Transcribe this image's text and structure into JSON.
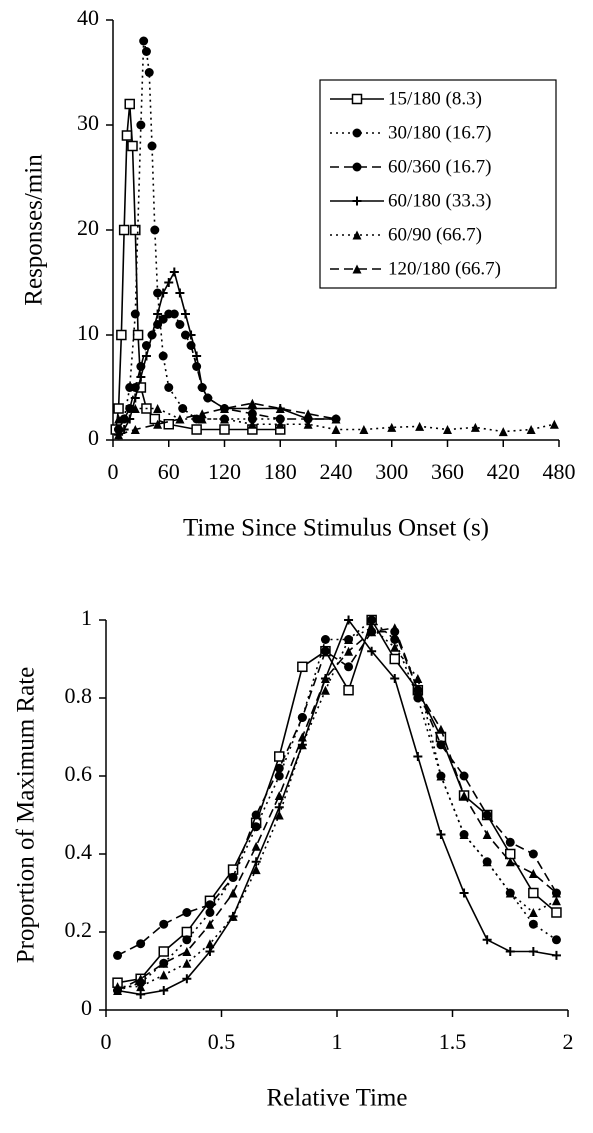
{
  "chart_data": [
    {
      "type": "line",
      "xlabel": "Time Since Stimulus Onset (s)",
      "ylabel": "Responses/min",
      "xlim": [
        0,
        480
      ],
      "xticks": [
        0,
        60,
        120,
        180,
        240,
        300,
        360,
        420,
        480
      ],
      "ylim": [
        0,
        40
      ],
      "yticks": [
        0,
        10,
        20,
        30,
        40
      ],
      "legend": "upper right",
      "series": [
        {
          "name": "15/180 (8.3)",
          "color": "#000000",
          "marker": "square",
          "dash": "solid",
          "x": [
            3,
            6,
            9,
            12,
            15,
            18,
            21,
            24,
            27,
            30,
            36,
            45,
            60,
            90,
            120,
            150,
            180
          ],
          "values": [
            1,
            3,
            10,
            20,
            29,
            32,
            28,
            20,
            10,
            5,
            3,
            2,
            1.5,
            1,
            1,
            1,
            1
          ]
        },
        {
          "name": "30/180 (16.7)",
          "color": "#000000",
          "marker": "circle",
          "dash": "dotted",
          "x": [
            6,
            12,
            18,
            24,
            30,
            33,
            36,
            39,
            42,
            45,
            48,
            54,
            60,
            75,
            90,
            120,
            150,
            180
          ],
          "values": [
            1,
            2,
            5,
            12,
            30,
            38,
            37,
            35,
            28,
            20,
            14,
            8,
            5,
            3,
            2,
            2,
            2,
            2
          ]
        },
        {
          "name": "60/360 (16.7)",
          "color": "#000000",
          "marker": "circle",
          "dash": "dashed",
          "x": [
            6,
            12,
            18,
            24,
            30,
            36,
            42,
            48,
            54,
            60,
            66,
            72,
            78,
            84,
            90,
            96,
            102,
            120,
            150,
            180,
            210,
            240
          ],
          "values": [
            1,
            2,
            3,
            5,
            7,
            9,
            10,
            11,
            11.5,
            12,
            12,
            11,
            10,
            9,
            7,
            5,
            4,
            3,
            2.5,
            2,
            2,
            2
          ]
        },
        {
          "name": "60/180 (33.3)",
          "color": "#000000",
          "marker": "plus",
          "dash": "solid",
          "x": [
            6,
            12,
            18,
            24,
            30,
            36,
            42,
            48,
            54,
            60,
            66,
            72,
            78,
            84,
            90,
            96,
            102,
            120,
            150,
            180,
            210,
            240
          ],
          "values": [
            0.5,
            1,
            2,
            4,
            6,
            8,
            10,
            12,
            14,
            15,
            16,
            14,
            12,
            10,
            8,
            5,
            4,
            3,
            3,
            3,
            2,
            2
          ]
        },
        {
          "name": "60/90 (66.7)",
          "color": "#000000",
          "marker": "triangle",
          "dash": "dotted",
          "x": [
            6,
            24,
            48,
            72,
            96,
            120,
            150,
            180,
            210,
            240,
            270,
            300,
            330,
            360,
            390,
            420,
            450,
            475
          ],
          "values": [
            2,
            3,
            3,
            2,
            2,
            2,
            1.5,
            1.5,
            1.5,
            1,
            1,
            1.2,
            1.3,
            1,
            1.2,
            0.8,
            1,
            1.5
          ]
        },
        {
          "name": "120/180 (66.7)",
          "color": "#000000",
          "marker": "triangle",
          "dash": "dashed",
          "x": [
            6,
            24,
            48,
            72,
            96,
            120,
            150,
            180,
            210,
            240
          ],
          "values": [
            0.5,
            1,
            1.5,
            2,
            2.5,
            3,
            3.5,
            3,
            2.5,
            2
          ]
        }
      ]
    },
    {
      "type": "line",
      "xlabel": "Relative Time",
      "ylabel": "Proportion of Maximum Rate",
      "xlim": [
        0,
        2
      ],
      "xticks": [
        0,
        0.5,
        1,
        1.5,
        2
      ],
      "ylim": [
        0,
        1
      ],
      "yticks": [
        0,
        0.2,
        0.4,
        0.6,
        0.8,
        1
      ],
      "x": [
        0.05,
        0.15,
        0.25,
        0.35,
        0.45,
        0.55,
        0.65,
        0.75,
        0.85,
        0.95,
        1.05,
        1.15,
        1.25,
        1.35,
        1.45,
        1.55,
        1.65,
        1.75,
        1.85,
        1.95
      ],
      "series": [
        {
          "color": "#000000",
          "marker": "square",
          "dash": "solid",
          "values": [
            0.07,
            0.08,
            0.15,
            0.2,
            0.28,
            0.36,
            0.48,
            0.65,
            0.88,
            0.92,
            0.82,
            1,
            0.9,
            0.82,
            0.7,
            0.55,
            0.5,
            0.4,
            0.3,
            0.25
          ]
        },
        {
          "color": "#000000",
          "marker": "circle",
          "dash": "dotted",
          "values": [
            0.05,
            0.07,
            0.12,
            0.18,
            0.25,
            0.34,
            0.47,
            0.6,
            0.75,
            0.95,
            0.95,
            1,
            0.95,
            0.8,
            0.6,
            0.45,
            0.38,
            0.3,
            0.22,
            0.18
          ]
        },
        {
          "color": "#000000",
          "marker": "circle",
          "dash": "dashed",
          "values": [
            0.14,
            0.17,
            0.22,
            0.25,
            0.27,
            0.34,
            0.5,
            0.62,
            0.75,
            0.92,
            0.88,
            0.97,
            0.97,
            0.82,
            0.68,
            0.6,
            0.5,
            0.43,
            0.4,
            0.3
          ]
        },
        {
          "color": "#000000",
          "marker": "plus",
          "dash": "solid",
          "values": [
            0.05,
            0.04,
            0.05,
            0.08,
            0.15,
            0.24,
            0.38,
            0.52,
            0.68,
            0.85,
            1,
            0.92,
            0.85,
            0.65,
            0.45,
            0.3,
            0.18,
            0.15,
            0.15,
            0.14
          ]
        },
        {
          "color": "#000000",
          "marker": "triangle",
          "dash": "dotted",
          "values": [
            0.06,
            0.06,
            0.09,
            0.12,
            0.17,
            0.24,
            0.36,
            0.5,
            0.68,
            0.82,
            0.95,
            0.98,
            0.93,
            0.85,
            0.6,
            0.45,
            0.38,
            0.3,
            0.25,
            0.28
          ]
        },
        {
          "color": "#000000",
          "marker": "triangle",
          "dash": "dashed",
          "values": [
            0.05,
            0.08,
            0.12,
            0.15,
            0.22,
            0.3,
            0.42,
            0.55,
            0.7,
            0.85,
            0.92,
            0.97,
            0.98,
            0.82,
            0.72,
            0.55,
            0.45,
            0.38,
            0.35,
            0.3
          ]
        }
      ]
    }
  ]
}
